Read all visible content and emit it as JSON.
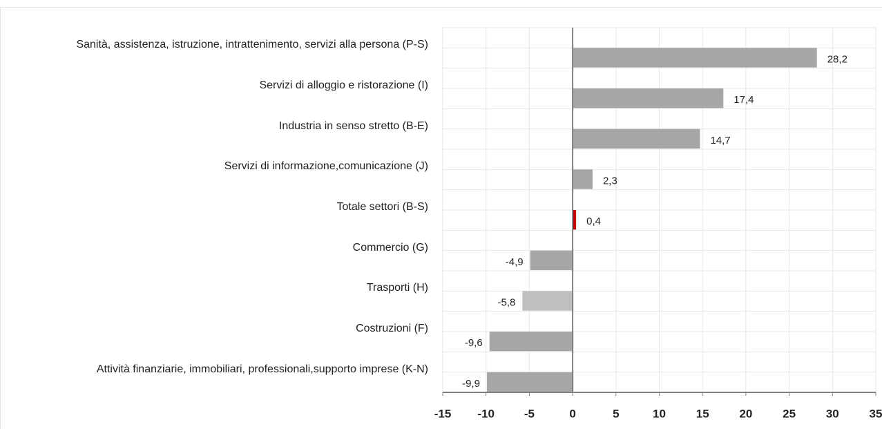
{
  "chart_data": {
    "type": "bar",
    "orientation": "horizontal",
    "categories": [
      "Sanità, assistenza, istruzione, intrattenimento, servizi alla persona (P-S)",
      "Servizi di alloggio e  ristorazione (I)",
      "Industria in senso stretto (B-E)",
      "Servizi di informazione,comunicazione (J)",
      "Totale settori (B-S)",
      "Commercio (G)",
      "Trasporti (H)",
      "Costruzioni (F)",
      "Attività finanziarie, immobiliari, professionali,supporto imprese (K-N)"
    ],
    "values": [
      28.2,
      17.4,
      14.7,
      2.3,
      0.4,
      -4.9,
      -5.8,
      -9.6,
      -9.9
    ],
    "value_labels": [
      "28,2",
      "17,4",
      "14,7",
      "2,3",
      "0,4",
      "-4,9",
      "-5,8",
      "-9,6",
      "-9,9"
    ],
    "colors": [
      "#a6a6a6",
      "#a6a6a6",
      "#a6a6a6",
      "#a6a6a6",
      "#c00000",
      "#a6a6a6",
      "#bfbfbf",
      "#a6a6a6",
      "#a6a6a6"
    ],
    "xlim": [
      -15,
      35
    ],
    "xticks": [
      -15,
      -10,
      -5,
      0,
      5,
      10,
      15,
      20,
      25,
      30,
      35
    ],
    "grid": true
  }
}
